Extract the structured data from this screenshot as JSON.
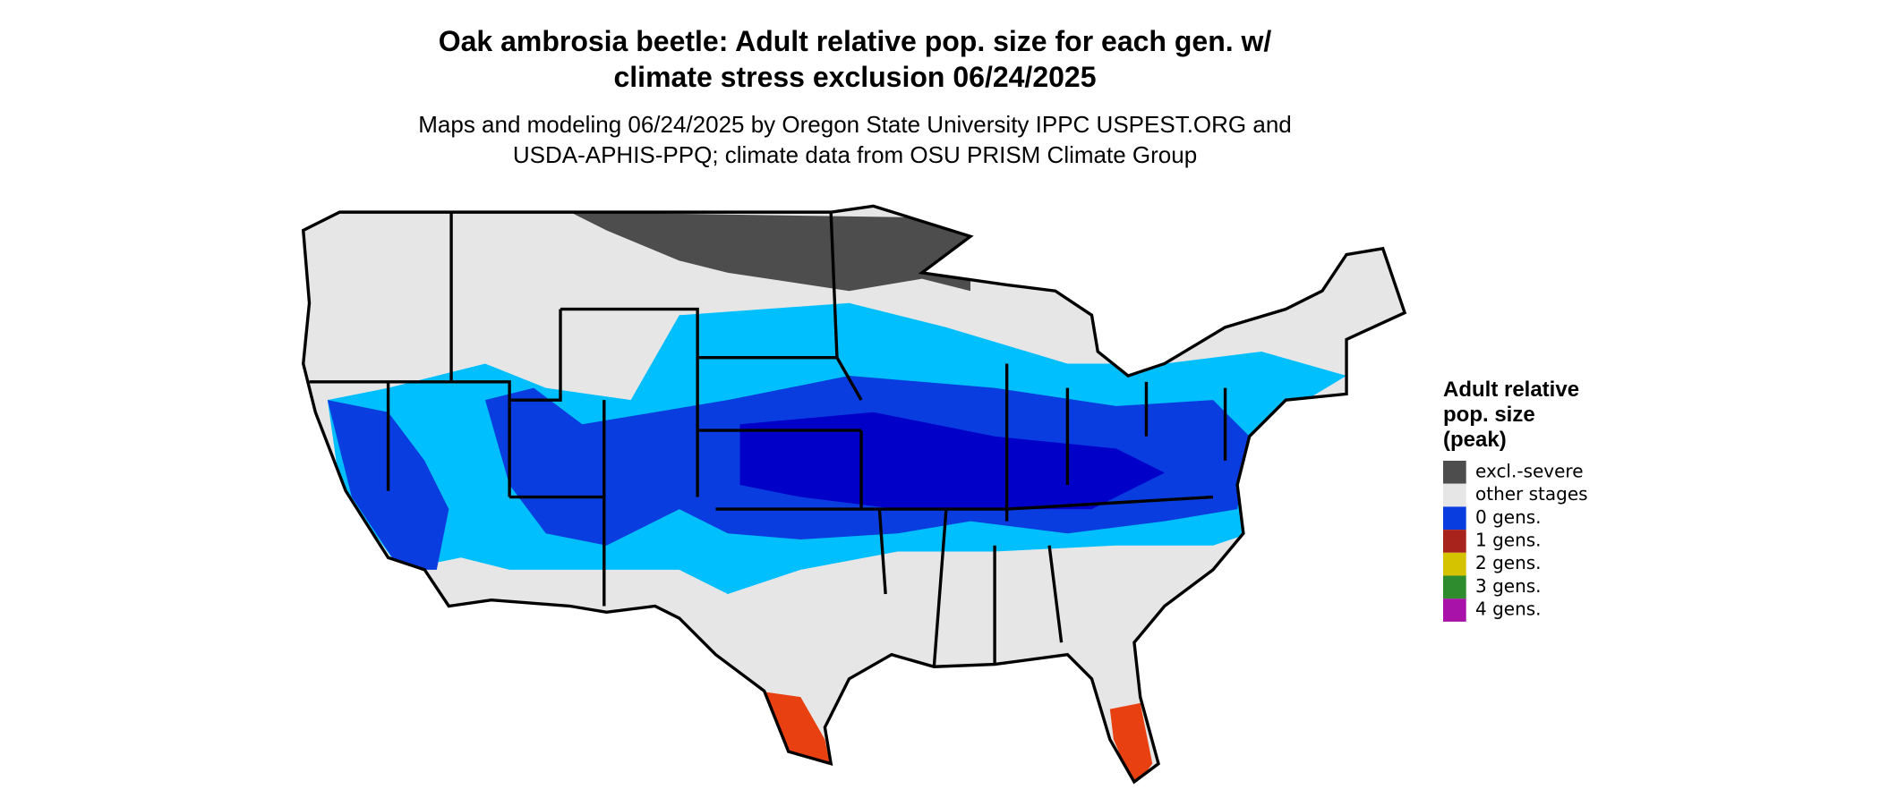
{
  "title": [
    "Oak ambrosia beetle: Adult relative pop. size for each gen. w/",
    "climate stress exclusion 06/24/2025"
  ],
  "subtitle": [
    "Maps and modeling 06/24/2025 by Oregon State University IPPC USPEST.ORG and",
    "USDA-APHIS-PPQ; climate data from OSU PRISM Climate Group"
  ],
  "legend": {
    "title": [
      "Adult relative",
      "pop. size",
      "(peak)"
    ],
    "items": [
      {
        "label": "excl.-severe",
        "color": "#4d4d4d"
      },
      {
        "label": "other stages",
        "color": "#e6e6e6"
      },
      {
        "label": "0 gens.",
        "color": "#0a3de0"
      },
      {
        "label": "1 gens.",
        "color": "#a8231b"
      },
      {
        "label": "2 gens.",
        "color": "#d6c300"
      },
      {
        "label": "3 gens.",
        "color": "#2e8b2e"
      },
      {
        "label": "4 gens.",
        "color": "#a812a8"
      }
    ]
  }
}
